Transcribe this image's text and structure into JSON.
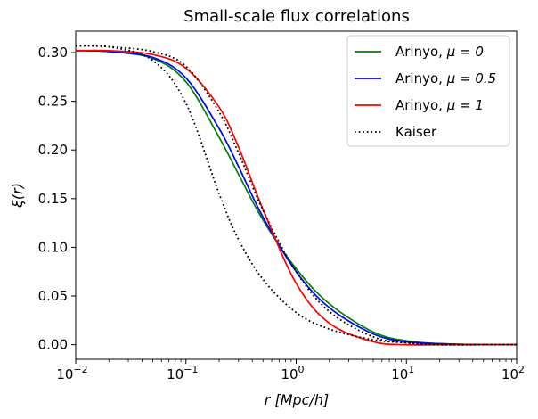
{
  "chart_data": {
    "type": "line",
    "title": "Small-scale flux correlations",
    "xlabel": "r [Mpc/h]",
    "ylabel": "ξ(r)",
    "xscale": "log",
    "xlim": [
      0.01,
      100
    ],
    "ylim": [
      -0.015,
      0.322
    ],
    "grid": false,
    "legend_position": "top-right",
    "x_ticks": [
      {
        "value": 0.01,
        "base": "10",
        "exp": "−2"
      },
      {
        "value": 0.1,
        "base": "10",
        "exp": "−1"
      },
      {
        "value": 1,
        "base": "10",
        "exp": "0"
      },
      {
        "value": 10,
        "base": "10",
        "exp": "1"
      },
      {
        "value": 100,
        "base": "10",
        "exp": "2"
      }
    ],
    "y_ticks": [
      {
        "value": 0.0,
        "label": "0.00"
      },
      {
        "value": 0.05,
        "label": "0.05"
      },
      {
        "value": 0.1,
        "label": "0.10"
      },
      {
        "value": 0.15,
        "label": "0.15"
      },
      {
        "value": 0.2,
        "label": "0.20"
      },
      {
        "value": 0.25,
        "label": "0.25"
      },
      {
        "value": 0.3,
        "label": "0.30"
      }
    ],
    "series": [
      {
        "name": "Arinyo, μ = 0",
        "legend_prefix": "Arinyo, ",
        "legend_math": "μ = 0",
        "color": "#008000",
        "style": "solid",
        "x": [
          0.01,
          0.02,
          0.05,
          0.1,
          0.2,
          0.3,
          0.5,
          1,
          2,
          5,
          10,
          20,
          50,
          100
        ],
        "y": [
          0.302,
          0.301,
          0.294,
          0.27,
          0.213,
          0.175,
          0.128,
          0.078,
          0.042,
          0.013,
          0.004,
          0.001,
          0.0,
          0.0
        ]
      },
      {
        "name": "Arinyo, μ = 0.5",
        "legend_prefix": "Arinyo, ",
        "legend_math": "μ = 0.5",
        "color": "#0000ff",
        "style": "solid",
        "x": [
          0.01,
          0.02,
          0.05,
          0.1,
          0.2,
          0.3,
          0.5,
          1,
          2,
          5,
          10,
          20,
          50,
          100
        ],
        "y": [
          0.302,
          0.301,
          0.295,
          0.274,
          0.222,
          0.183,
          0.131,
          0.075,
          0.038,
          0.011,
          0.003,
          0.001,
          0.0,
          0.0
        ]
      },
      {
        "name": "Arinyo, μ = 1",
        "legend_prefix": "Arinyo, ",
        "legend_math": "μ = 1",
        "color": "#ff0000",
        "style": "solid",
        "x": [
          0.01,
          0.02,
          0.05,
          0.1,
          0.2,
          0.3,
          0.5,
          1,
          2,
          5,
          10,
          20,
          50,
          100
        ],
        "y": [
          0.302,
          0.302,
          0.298,
          0.284,
          0.244,
          0.203,
          0.139,
          0.063,
          0.022,
          0.003,
          0.0,
          0.0,
          0.0,
          0.0
        ]
      },
      {
        "name": "Kaiser",
        "legend_prefix": "Kaiser",
        "legend_math": "",
        "color": "#000000",
        "style": "dotted",
        "x": [
          0.01,
          0.02,
          0.05,
          0.1,
          0.2,
          0.3,
          0.5,
          1,
          2,
          5,
          10,
          20,
          50,
          100
        ],
        "y": [
          0.307,
          0.306,
          0.292,
          0.248,
          0.155,
          0.108,
          0.067,
          0.033,
          0.016,
          0.005,
          0.002,
          0.0,
          0.0,
          0.0
        ]
      },
      {
        "name": "Kaiser (dotted, high)",
        "legend_prefix": "",
        "legend_math": "",
        "hide_in_legend": true,
        "color": "#000000",
        "style": "dotted",
        "x": [
          0.01,
          0.02,
          0.05,
          0.1,
          0.2,
          0.3,
          0.5,
          1,
          2,
          5,
          10,
          20,
          50,
          100
        ],
        "y": [
          0.307,
          0.306,
          0.301,
          0.286,
          0.239,
          0.197,
          0.138,
          0.075,
          0.034,
          0.008,
          0.002,
          0.0,
          0.0,
          0.0
        ]
      }
    ]
  }
}
